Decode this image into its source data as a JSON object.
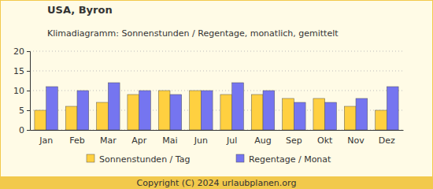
{
  "chart_data": {
    "type": "bar",
    "title": "USA, Byron",
    "subtitle": "Klimadiagramm: Sonnenstunden / Regentage, monatlich, gemittelt",
    "annotations": [
      "Copyright (C) 2024 urlaubplanen.org"
    ],
    "categories": [
      "Jan",
      "Feb",
      "Mar",
      "Apr",
      "Mai",
      "Jun",
      "Jul",
      "Aug",
      "Sep",
      "Okt",
      "Nov",
      "Dez"
    ],
    "series": [
      {
        "name": "Sonnenstunden / Tag",
        "color": "#ffd040",
        "values": [
          5,
          6,
          7,
          9,
          10,
          10,
          9,
          9,
          8,
          8,
          6,
          5
        ]
      },
      {
        "name": "Regentage / Monat",
        "color": "#7575f0",
        "values": [
          11,
          10,
          12,
          10,
          9,
          10,
          12,
          10,
          7,
          7,
          8,
          11
        ]
      }
    ],
    "ylim": [
      0,
      20
    ],
    "yticks": [
      0,
      5,
      10,
      15,
      20
    ],
    "grid": true,
    "legend": "bottom"
  }
}
